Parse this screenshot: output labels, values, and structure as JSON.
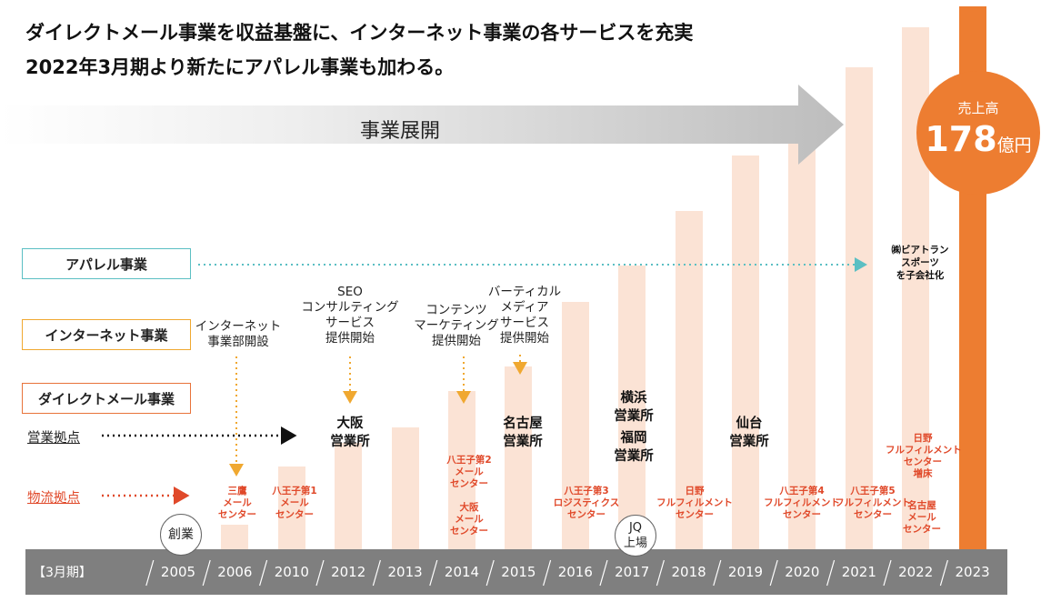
{
  "heading": {
    "line1": "ダイレクトメール事業を収益基盤に、インターネット事業の各サービスを充実",
    "line2": "2022年3月期より新たにアパレル事業も加わる。"
  },
  "banner": {
    "label": "事業展開"
  },
  "sales_badge": {
    "title": "売上高",
    "value": "178",
    "unit": "億円"
  },
  "segments": {
    "apparel": "アパレル事業",
    "internet": "インターネット事業",
    "direct_mail": "ダイレクトメール事業"
  },
  "rows": {
    "sales_office": "営業拠点",
    "logistics": "物流拠点"
  },
  "axis": {
    "period_label": "【3月期】"
  },
  "badges": {
    "founded": "創業",
    "listing": "JQ\n上場"
  },
  "annotations": {
    "internet_2006": "インターネット\n事業部開設",
    "seo_2012": "SEO\nコンサルティング\nサービス\n提供開始",
    "content_2014": "コンテンツ\nマーケティング\n提供開始",
    "vertical_2015": "バーティカル\nメディア\nサービス\n提供開始",
    "apparel_2022": "㈱ビアトラン\nスポーツ\nを子会社化"
  },
  "offices": {
    "osaka": "大阪\n営業所",
    "nagoya": "名古屋\n営業所",
    "yokohama": "横浜\n営業所",
    "fukuoka": "福岡\n営業所",
    "sendai": "仙台\n営業所"
  },
  "logistics": {
    "mitaka": "三鷹\nメール\nセンター",
    "hachioji1": "八王子第1\nメール\nセンター",
    "hachioji2": "八王子第2\nメール\nセンター",
    "osaka_mail": "大阪\nメール\nセンター",
    "hachioji3": "八王子第3\nロジスティクス\nセンター",
    "hino": "日野\nフルフィルメント\nセンター",
    "hachioji4": "八王子第4\nフルフィルメント\nセンター",
    "hachioji5": "八王子第5\nフルフィルメント\nセンター",
    "hino_ext": "日野\nフルフィルメント\nセンター\n増床",
    "nagoya_mail": "名古屋\nメール\nセンター"
  },
  "colors": {
    "bar": "#fbe3d5",
    "bar_highlight": "#ed7d31",
    "apparel": "#5bbfc3",
    "internet": "#f0a830",
    "direct_mail": "#e8733a",
    "logistics": "#e0492a",
    "axis": "#7f7f7f"
  },
  "chart_data": {
    "type": "bar",
    "categories": [
      "2005",
      "2006",
      "2010",
      "2012",
      "2013",
      "2014",
      "2015",
      "2016",
      "2017",
      "2018",
      "2019",
      "2020",
      "2021",
      "2022",
      "2023"
    ],
    "values": [
      0,
      0.8,
      2.7,
      3.5,
      4.0,
      5.2,
      6.0,
      8.1,
      9.3,
      11.1,
      12.9,
      14.5,
      15.8,
      17.1,
      17.8
    ],
    "ylabel": "",
    "ylim": [
      0,
      18
    ]
  }
}
